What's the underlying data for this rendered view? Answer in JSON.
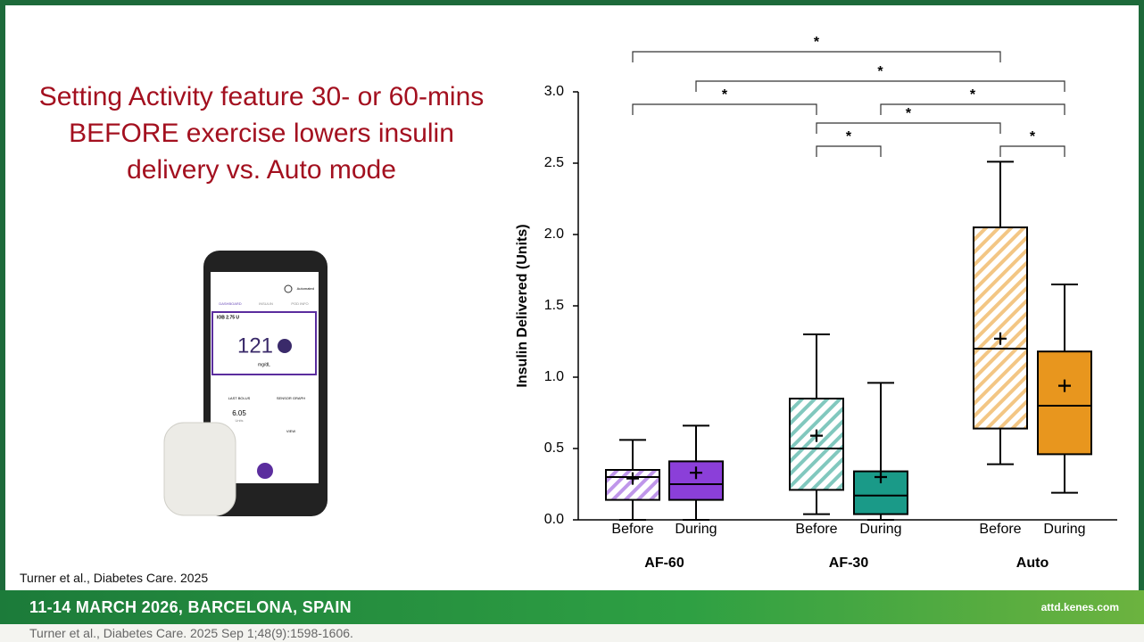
{
  "title": "Setting Activity feature 30- or 60-mins BEFORE exercise lowers insulin delivery vs. Auto mode",
  "citation": "Turner et al., Diabetes Care. 2025",
  "footer": {
    "event": "11-14 MARCH 2026, BARCELONA, SPAIN",
    "url": "attd.kenes.com"
  },
  "caption": "Turner et al., Diabetes Care. 2025 Sep 1;48(9):1598-1606.",
  "phone": {
    "status": "Automated",
    "tabs": [
      "DASHBOARD",
      "INSULIN",
      "POD INFO"
    ],
    "iob": "IOB 2.75 U",
    "glucose": "121",
    "glucose_unit": "mg/dL",
    "last_bolus": "LAST BOLUS",
    "bolus_value": "6.05",
    "bolus_unit": "Units",
    "sensor_graph": "SENSOR GRAPH",
    "view": "VIEW"
  },
  "chart_data": {
    "type": "box",
    "ylabel": "Insulin Delivered (Units)",
    "ylim": [
      0,
      3.0
    ],
    "yticks": [
      {
        "value": 0,
        "label": "0.0"
      },
      {
        "value": 0.5,
        "label": "0.5"
      },
      {
        "value": 1.0,
        "label": "1.0"
      },
      {
        "value": 1.5,
        "label": "1.5"
      },
      {
        "value": 2.0,
        "label": "2.0"
      },
      {
        "value": 2.5,
        "label": "2.5"
      },
      {
        "value": 3.0,
        "label": "3.0"
      }
    ],
    "groups": [
      {
        "name": "AF-60",
        "color": "#8b3fd9",
        "boxes": [
          {
            "label": "Before",
            "hatch": true,
            "min": 0,
            "q1": 0.14,
            "median": 0.3,
            "q3": 0.35,
            "max": 0.56,
            "mean": 0.29
          },
          {
            "label": "During",
            "hatch": false,
            "min": 0,
            "q1": 0.14,
            "median": 0.25,
            "q3": 0.41,
            "max": 0.66,
            "mean": 0.33
          }
        ]
      },
      {
        "name": "AF-30",
        "color": "#1a9a88",
        "boxes": [
          {
            "label": "Before",
            "hatch": true,
            "min": 0.04,
            "q1": 0.21,
            "median": 0.5,
            "q3": 0.85,
            "max": 1.3,
            "mean": 0.59
          },
          {
            "label": "During",
            "hatch": false,
            "min": 0,
            "q1": 0.04,
            "median": 0.17,
            "q3": 0.34,
            "max": 0.96,
            "mean": 0.3
          }
        ]
      },
      {
        "name": "Auto",
        "color": "#e8961e",
        "boxes": [
          {
            "label": "Before",
            "hatch": true,
            "min": 0.39,
            "q1": 0.64,
            "median": 1.2,
            "q3": 2.05,
            "max": 2.51,
            "mean": 1.27
          },
          {
            "label": "During",
            "hatch": false,
            "min": 0.19,
            "q1": 0.46,
            "median": 0.8,
            "q3": 1.18,
            "max": 1.65,
            "mean": 0.94
          }
        ]
      }
    ],
    "significance": [
      "*",
      "*",
      "*",
      "*",
      "*",
      "*",
      "*"
    ]
  }
}
